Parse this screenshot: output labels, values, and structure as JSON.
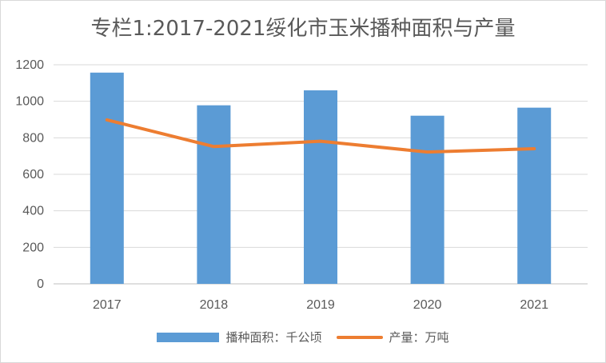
{
  "chart_data": {
    "type": "bar",
    "title": "专栏1:2017-2021绥化市玉米播种面积与产量",
    "categories": [
      "2017",
      "2018",
      "2019",
      "2020",
      "2021"
    ],
    "series": [
      {
        "name": "播种面积：千公顷",
        "type": "bar",
        "values": [
          1157,
          978,
          1060,
          921,
          965
        ],
        "color": "#5b9bd5"
      },
      {
        "name": "产量：万吨",
        "type": "line",
        "values": [
          898,
          752,
          781,
          722,
          740
        ],
        "color": "#ed7d31"
      }
    ],
    "ylim": [
      0,
      1200
    ],
    "yticks": [
      0,
      200,
      400,
      600,
      800,
      1000,
      1200
    ],
    "grid": true,
    "legend_position": "bottom",
    "xlabel": "",
    "ylabel": ""
  }
}
